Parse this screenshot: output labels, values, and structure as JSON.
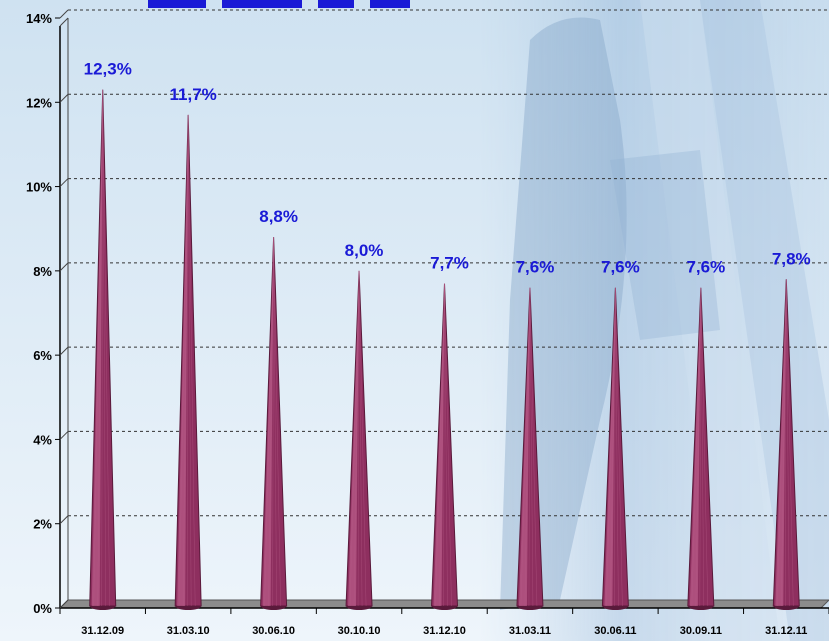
{
  "chart_data": {
    "type": "bar",
    "bar_shape": "cone",
    "title": "",
    "xlabel": "",
    "ylabel": "",
    "categories": [
      "31.12.09",
      "31.03.10",
      "30.06.10",
      "30.10.10",
      "31.12.10",
      "31.03.11",
      "30.06.11",
      "30.09.11",
      "31.12.11"
    ],
    "values": [
      12.3,
      11.7,
      8.8,
      8.0,
      7.7,
      7.6,
      7.6,
      7.6,
      7.8
    ],
    "data_labels": [
      "12,3%",
      "11,7%",
      "8,8%",
      "8,0%",
      "7,7%",
      "7,6%",
      "7,6%",
      "7,6%",
      "7,8%"
    ],
    "ylim": [
      0,
      14
    ],
    "yticks": [
      0,
      2,
      4,
      6,
      8,
      10,
      12,
      14
    ],
    "ytick_labels": [
      "0%",
      "2%",
      "4%",
      "6%",
      "8%",
      "10%",
      "12%",
      "14%"
    ],
    "grid": "horizontal dashed",
    "legend": "none"
  },
  "colors": {
    "bar": "#8e2f5f",
    "bar_highlight": "#c76a96",
    "bar_shadow": "#5a1a3b",
    "data_label": "#1a1ad6",
    "grid": "#333333",
    "axis": "#000000",
    "floor": "#8c8c8c",
    "title": "#1a1ad6",
    "background_top": "#cfe2f1",
    "background_bottom": "#eef5fb"
  }
}
